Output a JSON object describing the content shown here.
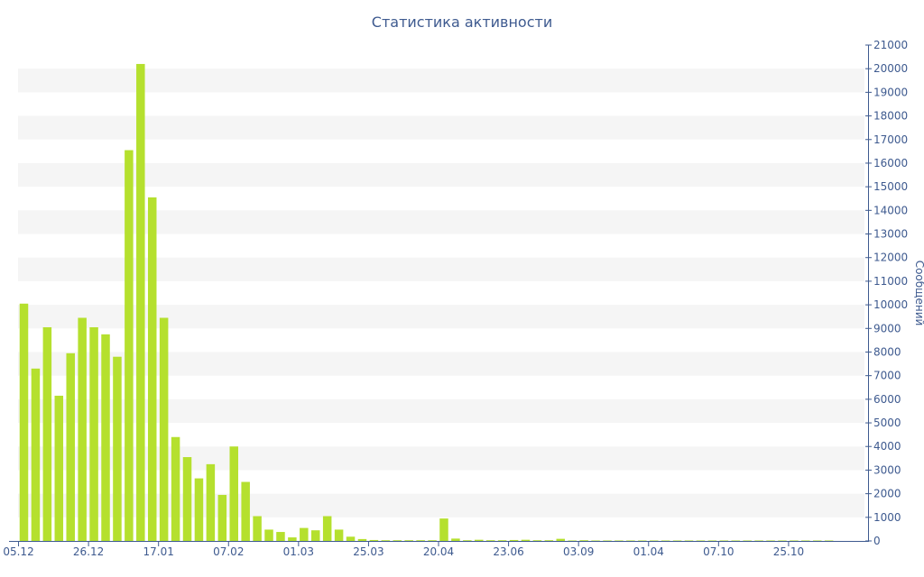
{
  "chart_data": {
    "type": "bar",
    "title": "Статистика активности",
    "xlabel": "",
    "ylabel": "Сообщений",
    "ylim": [
      0,
      21000
    ],
    "y_ticks": [
      0,
      1000,
      2000,
      3000,
      4000,
      5000,
      6000,
      7000,
      8000,
      9000,
      10000,
      11000,
      12000,
      13000,
      14000,
      15000,
      16000,
      17000,
      18000,
      19000,
      20000,
      21000
    ],
    "x_tick_labels": [
      {
        "label": "05.12",
        "index": 0
      },
      {
        "label": "26.12",
        "index": 6
      },
      {
        "label": "17.01",
        "index": 12
      },
      {
        "label": "07.02",
        "index": 18
      },
      {
        "label": "01.03",
        "index": 24
      },
      {
        "label": "25.03",
        "index": 30
      },
      {
        "label": "20.04",
        "index": 36
      },
      {
        "label": "23.06",
        "index": 42
      },
      {
        "label": "03.09",
        "index": 48
      },
      {
        "label": "01.04",
        "index": 54
      },
      {
        "label": "07.10",
        "index": 60
      },
      {
        "label": "25.10",
        "index": 66
      }
    ],
    "values": [
      10050,
      7300,
      9050,
      6150,
      7950,
      9450,
      9050,
      8750,
      7800,
      16550,
      20200,
      14550,
      9450,
      4400,
      3550,
      2650,
      3250,
      1950,
      4000,
      2500,
      1050,
      480,
      380,
      150,
      550,
      450,
      1050,
      480,
      180,
      80,
      40,
      30,
      30,
      30,
      30,
      30,
      950,
      100,
      30,
      50,
      30,
      30,
      40,
      50,
      30,
      30,
      90,
      20,
      30,
      20,
      20,
      20,
      20,
      20,
      20,
      20,
      20,
      20,
      20,
      20,
      20,
      20,
      20,
      20,
      20,
      20,
      20,
      20,
      20,
      20
    ],
    "grid": "alternating horizontal bands",
    "y_axis_position": "right",
    "bar_color": "#b5e02e",
    "band_color": "#f5f5f5",
    "axis_text_color": "#3e5a8f"
  }
}
